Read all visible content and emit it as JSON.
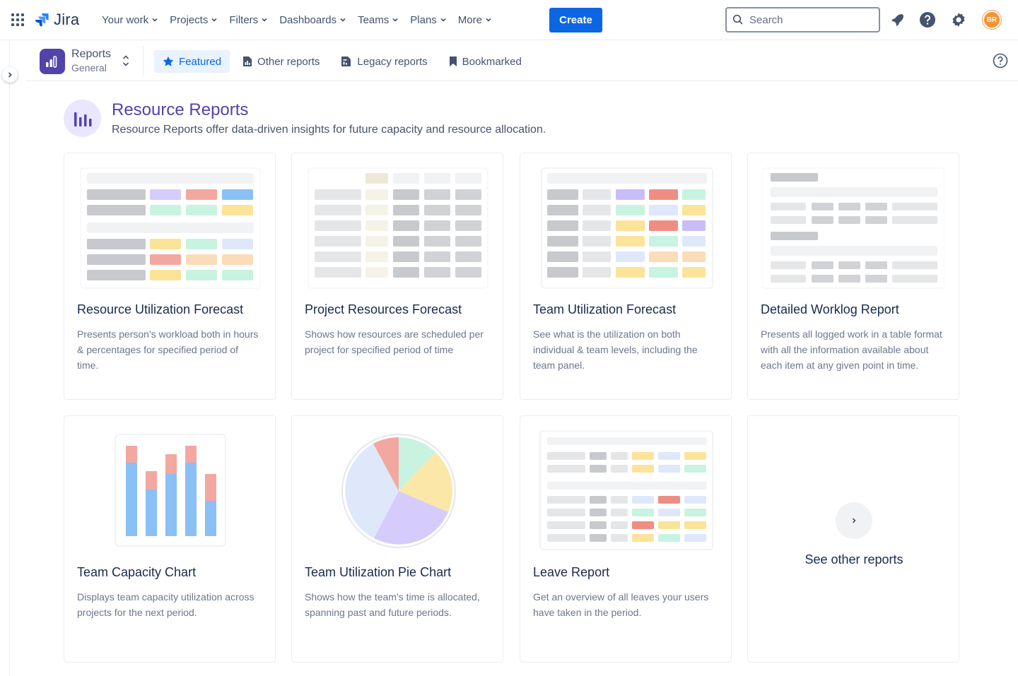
{
  "topnav": {
    "logo": "Jira",
    "menu": [
      {
        "label": "Your work"
      },
      {
        "label": "Projects"
      },
      {
        "label": "Filters"
      },
      {
        "label": "Dashboards"
      },
      {
        "label": "Teams"
      },
      {
        "label": "Plans"
      },
      {
        "label": "More"
      }
    ],
    "create_label": "Create",
    "search_placeholder": "Search",
    "avatar_initials": "BR",
    "colors": {
      "primary": "#0c66e4",
      "avatar": "#f79232"
    }
  },
  "subheader": {
    "app_title": "Reports",
    "app_subtitle": "General",
    "tabs": [
      {
        "label": "Featured",
        "active": true,
        "icon": "star-icon"
      },
      {
        "label": "Other reports",
        "active": false,
        "icon": "report-icon"
      },
      {
        "label": "Legacy reports",
        "active": false,
        "icon": "legacy-report-icon"
      },
      {
        "label": "Bookmarked",
        "active": false,
        "icon": "bookmark-icon"
      }
    ]
  },
  "page": {
    "title": "Resource Reports",
    "description": "Resource Reports offer data-driven insights for future capacity and resource allocation.",
    "accent_color": "#5243aa"
  },
  "cards": [
    {
      "title": "Resource Utilization Forecast",
      "description": "Presents person's workload both in hours & percentages for specified period of time."
    },
    {
      "title": "Project Resources Forecast",
      "description": "Shows how resources are scheduled per project for specified period of time"
    },
    {
      "title": "Team Utilization Forecast",
      "description": "See what is the utilization on both individual & team levels, including the team panel."
    },
    {
      "title": "Detailed Worklog Report",
      "description": "Presents all logged work in a table format with all the information available about each item at any given point in time."
    },
    {
      "title": "Team Capacity Chart",
      "description": "Displays team capacity utilization across projects for the next period."
    },
    {
      "title": "Team Utilization Pie Chart",
      "description": "Shows how the team's time is allocated, spanning past and future periods."
    },
    {
      "title": "Leave Report",
      "description": "Get an overview of all leaves your users have taken in the period."
    },
    {
      "title": "See other reports",
      "description": ""
    }
  ]
}
